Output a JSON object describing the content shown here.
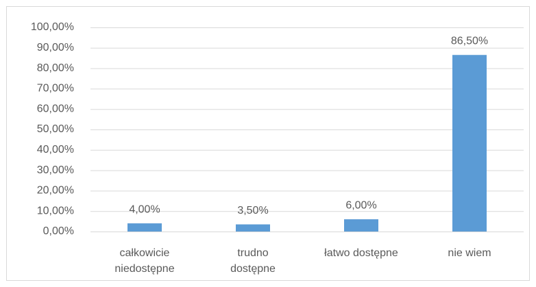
{
  "chart_data": {
    "type": "bar",
    "categories": [
      "całkowicie\nniedostępne",
      "trudno\ndostępne",
      "łatwo dostępne",
      "nie wiem"
    ],
    "values": [
      4,
      3.5,
      6,
      86.5
    ],
    "value_labels": [
      "4,00%",
      "3,50%",
      "6,00%",
      "86,50%"
    ],
    "color": "#5b9bd5",
    "ylim": [
      0,
      100
    ],
    "yticks": [
      {
        "value": 0,
        "label": "0,00%"
      },
      {
        "value": 10,
        "label": "10,00%"
      },
      {
        "value": 20,
        "label": "20,00%"
      },
      {
        "value": 30,
        "label": "30,00%"
      },
      {
        "value": 40,
        "label": "40,00%"
      },
      {
        "value": 50,
        "label": "50,00%"
      },
      {
        "value": 60,
        "label": "60,00%"
      },
      {
        "value": 70,
        "label": "70,00%"
      },
      {
        "value": 80,
        "label": "80,00%"
      },
      {
        "value": 90,
        "label": "90,00%"
      },
      {
        "value": 100,
        "label": "100,00%"
      }
    ],
    "grid": true
  }
}
